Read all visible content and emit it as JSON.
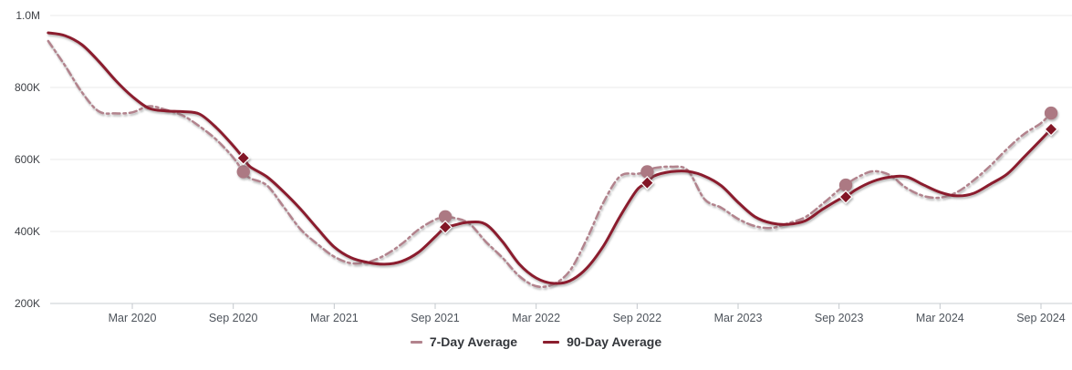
{
  "chart_data": {
    "type": "line",
    "title": "",
    "unit": "K (thousands)",
    "x_axis": {
      "start_month_index_label": "Oct 2019",
      "months_span": 59.6,
      "ticks": [
        {
          "m": 5,
          "label": "Mar 2020"
        },
        {
          "m": 11,
          "label": "Sep 2020"
        },
        {
          "m": 17,
          "label": "Mar 2021"
        },
        {
          "m": 23,
          "label": "Sep 2021"
        },
        {
          "m": 29,
          "label": "Mar 2022"
        },
        {
          "m": 35,
          "label": "Sep 2022"
        },
        {
          "m": 41,
          "label": "Mar 2023"
        },
        {
          "m": 47,
          "label": "Sep 2023"
        },
        {
          "m": 53,
          "label": "Mar 2024"
        },
        {
          "m": 59,
          "label": "Sep 2024"
        }
      ]
    },
    "y_axis": {
      "min": 200,
      "max": 1000,
      "ticks": [
        {
          "value": 1000,
          "label": "1.0M"
        },
        {
          "value": 800,
          "label": "800K"
        },
        {
          "value": 600,
          "label": "600K"
        },
        {
          "value": 400,
          "label": "400K"
        },
        {
          "value": 200,
          "label": "200K"
        }
      ]
    },
    "grid": "horizontal",
    "legend_position": "bottom-center",
    "colors": {
      "grid": "#e8e8e8",
      "axis": "#c9cdd1",
      "tick": "#c3c8cd",
      "background": "#ffffff"
    },
    "series": [
      {
        "name": "7-Day Average",
        "color": "#b2838d",
        "marker_color": "#ac7983",
        "line_style": "dash-dot",
        "line_width": 2.5,
        "marker_shape": "circle",
        "points": [
          [
            0,
            929
          ],
          [
            1,
            861
          ],
          [
            2,
            787
          ],
          [
            3,
            734
          ],
          [
            4,
            728
          ],
          [
            5,
            731
          ],
          [
            6,
            748
          ],
          [
            7,
            738
          ],
          [
            8,
            722
          ],
          [
            9,
            692
          ],
          [
            10,
            655
          ],
          [
            11,
            605
          ],
          [
            11.6,
            566
          ],
          [
            12,
            548
          ],
          [
            13,
            528
          ],
          [
            14,
            468
          ],
          [
            15,
            406
          ],
          [
            16,
            365
          ],
          [
            17,
            330
          ],
          [
            18,
            312
          ],
          [
            19,
            315
          ],
          [
            20,
            334
          ],
          [
            21,
            365
          ],
          [
            22,
            405
          ],
          [
            23,
            433
          ],
          [
            23.6,
            441
          ],
          [
            24,
            439
          ],
          [
            25,
            423
          ],
          [
            26,
            372
          ],
          [
            27,
            327
          ],
          [
            28,
            276
          ],
          [
            29,
            248
          ],
          [
            30,
            253
          ],
          [
            31,
            291
          ],
          [
            32,
            378
          ],
          [
            33,
            481
          ],
          [
            34,
            554
          ],
          [
            35,
            560
          ],
          [
            35.6,
            566
          ],
          [
            36,
            576
          ],
          [
            37,
            580
          ],
          [
            38,
            570
          ],
          [
            39,
            490
          ],
          [
            40,
            466
          ],
          [
            41,
            435
          ],
          [
            42,
            415
          ],
          [
            43,
            410
          ],
          [
            44,
            423
          ],
          [
            45,
            440
          ],
          [
            46,
            476
          ],
          [
            47,
            516
          ],
          [
            47.4,
            529
          ],
          [
            48,
            548
          ],
          [
            49,
            567
          ],
          [
            50,
            557
          ],
          [
            51,
            521
          ],
          [
            52,
            499
          ],
          [
            53,
            494
          ],
          [
            54,
            509
          ],
          [
            55,
            542
          ],
          [
            56,
            583
          ],
          [
            57,
            630
          ],
          [
            58,
            671
          ],
          [
            59,
            701
          ],
          [
            59.6,
            729
          ]
        ],
        "markers": [
          [
            11.6,
            566
          ],
          [
            23.6,
            441
          ],
          [
            35.6,
            566
          ],
          [
            47.4,
            529
          ],
          [
            59.6,
            729
          ]
        ]
      },
      {
        "name": "90-Day Average",
        "color": "#8b1e2e",
        "marker_color": "#821627",
        "line_style": "solid",
        "line_width": 3,
        "marker_shape": "diamond",
        "points": [
          [
            0,
            952
          ],
          [
            1,
            944
          ],
          [
            2,
            919
          ],
          [
            3,
            873
          ],
          [
            4,
            820
          ],
          [
            5,
            775
          ],
          [
            6,
            742
          ],
          [
            7,
            735
          ],
          [
            8,
            733
          ],
          [
            9,
            726
          ],
          [
            10,
            688
          ],
          [
            11,
            638
          ],
          [
            11.6,
            604
          ],
          [
            12,
            580
          ],
          [
            13,
            552
          ],
          [
            14,
            510
          ],
          [
            15,
            462
          ],
          [
            16,
            408
          ],
          [
            17,
            357
          ],
          [
            18,
            327
          ],
          [
            19,
            314
          ],
          [
            20,
            309
          ],
          [
            21,
            317
          ],
          [
            22,
            342
          ],
          [
            23,
            385
          ],
          [
            23.6,
            412
          ],
          [
            24,
            416
          ],
          [
            25,
            426
          ],
          [
            26,
            420
          ],
          [
            27,
            372
          ],
          [
            28,
            309
          ],
          [
            29,
            271
          ],
          [
            30,
            256
          ],
          [
            31,
            263
          ],
          [
            32,
            298
          ],
          [
            33,
            360
          ],
          [
            34,
            443
          ],
          [
            35,
            516
          ],
          [
            35.6,
            535
          ],
          [
            36,
            554
          ],
          [
            37,
            566
          ],
          [
            38,
            567
          ],
          [
            39,
            554
          ],
          [
            40,
            527
          ],
          [
            41,
            481
          ],
          [
            42,
            441
          ],
          [
            43,
            423
          ],
          [
            44,
            420
          ],
          [
            45,
            430
          ],
          [
            46,
            461
          ],
          [
            47,
            489
          ],
          [
            47.4,
            496
          ],
          [
            48,
            516
          ],
          [
            49,
            539
          ],
          [
            50,
            551
          ],
          [
            51,
            552
          ],
          [
            52,
            530
          ],
          [
            53,
            509
          ],
          [
            54,
            499
          ],
          [
            55,
            506
          ],
          [
            56,
            532
          ],
          [
            57,
            560
          ],
          [
            58,
            607
          ],
          [
            59,
            655
          ],
          [
            59.6,
            684
          ]
        ],
        "markers": [
          [
            11.6,
            604
          ],
          [
            23.6,
            412
          ],
          [
            35.6,
            535
          ],
          [
            47.4,
            496
          ],
          [
            59.6,
            684
          ]
        ]
      }
    ]
  }
}
